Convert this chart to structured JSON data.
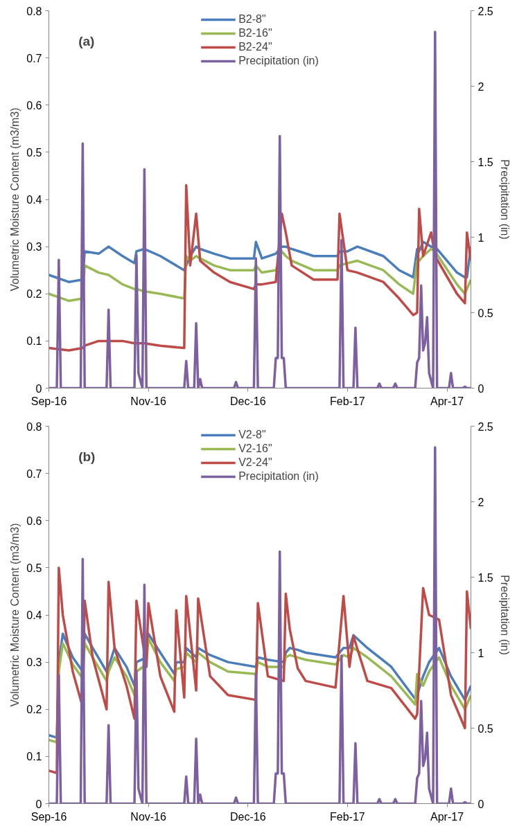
{
  "chart_data": [
    {
      "type": "line",
      "annotations": [
        "(a)"
      ],
      "ylabel": "Volumetric Moisture Content (m3/m3)",
      "y2label": "Precipitation (in)",
      "xlim": [
        "2016-09-15",
        "2017-04-15"
      ],
      "xticks": [
        {
          "value": "2016-09-15",
          "label": "Sep-16"
        },
        {
          "value": "2016-11-04",
          "label": "Nov-16"
        },
        {
          "value": "2016-12-24",
          "label": "Dec-16"
        },
        {
          "value": "2017-02-12",
          "label": "Feb-17"
        },
        {
          "value": "2017-04-03",
          "label": "Apr-17"
        }
      ],
      "ylim": [
        0,
        0.8
      ],
      "yticks": [
        0,
        0.1,
        0.2,
        0.3,
        0.4,
        0.5,
        0.6,
        0.7,
        0.8
      ],
      "y2lim": [
        0,
        2.5
      ],
      "y2ticks": [
        0,
        0.5,
        1,
        1.5,
        2,
        2.5
      ],
      "grid": false,
      "legend": "top",
      "marker": "none",
      "line_style": "solid",
      "x": [
        "2016-09-15",
        "2016-09-25",
        "2016-10-02",
        "2016-10-03",
        "2016-10-10",
        "2016-10-15",
        "2016-10-22",
        "2016-10-28",
        "2016-10-29",
        "2016-11-02",
        "2016-11-10",
        "2016-11-22",
        "2016-11-23",
        "2016-11-25",
        "2016-11-28",
        "2016-11-30",
        "2016-12-07",
        "2016-12-15",
        "2016-12-27",
        "2016-12-28",
        "2016-12-31",
        "2017-01-07",
        "2017-01-10",
        "2017-01-12",
        "2017-01-15",
        "2017-01-26",
        "2017-02-07",
        "2017-02-08",
        "2017-02-12",
        "2017-02-17",
        "2017-03-02",
        "2017-03-10",
        "2017-03-17",
        "2017-03-19",
        "2017-03-20",
        "2017-03-22",
        "2017-03-26",
        "2017-03-28",
        "2017-04-08",
        "2017-04-12",
        "2017-04-13",
        "2017-04-15"
      ],
      "series": [
        {
          "name": "B2-8\"",
          "color": "#4a7ebb",
          "values": [
            0.24,
            0.225,
            0.23,
            0.29,
            0.285,
            0.3,
            0.28,
            0.265,
            0.29,
            0.295,
            0.28,
            0.25,
            0.26,
            0.28,
            0.3,
            0.295,
            0.285,
            0.275,
            0.275,
            0.31,
            0.275,
            0.285,
            0.3,
            0.3,
            0.295,
            0.28,
            0.28,
            0.29,
            0.29,
            0.3,
            0.28,
            0.25,
            0.235,
            0.295,
            0.29,
            0.31,
            0.3,
            0.3,
            0.245,
            0.235,
            0.235,
            0.3
          ]
        },
        {
          "name": "B2-16\"",
          "color": "#98b954",
          "values": [
            0.2,
            0.185,
            0.19,
            0.26,
            0.245,
            0.24,
            0.22,
            0.21,
            0.21,
            0.205,
            0.2,
            0.19,
            0.28,
            0.27,
            0.28,
            0.275,
            0.26,
            0.25,
            0.25,
            0.26,
            0.245,
            0.25,
            0.29,
            0.28,
            0.27,
            0.25,
            0.25,
            0.26,
            0.265,
            0.27,
            0.25,
            0.22,
            0.2,
            0.27,
            0.27,
            0.28,
            0.295,
            0.29,
            0.22,
            0.2,
            0.21,
            0.23
          ]
        },
        {
          "name": "B2-24\"",
          "color": "#be4b48",
          "values": [
            0.085,
            0.08,
            0.085,
            0.09,
            0.1,
            0.1,
            0.1,
            0.095,
            0.095,
            0.095,
            0.09,
            0.085,
            0.43,
            0.26,
            0.37,
            0.27,
            0.245,
            0.225,
            0.21,
            0.22,
            0.22,
            0.225,
            0.37,
            0.33,
            0.26,
            0.23,
            0.23,
            0.37,
            0.25,
            0.245,
            0.225,
            0.19,
            0.155,
            0.16,
            0.38,
            0.28,
            0.33,
            0.28,
            0.2,
            0.18,
            0.33,
            0.27
          ]
        },
        {
          "name": "Precipitation (in)",
          "color": "#7d60a0",
          "axis": "y2",
          "x": [
            "2016-09-15",
            "2016-09-19",
            "2016-09-20",
            "2016-09-21",
            "2016-10-01",
            "2016-10-02",
            "2016-10-03",
            "2016-10-14",
            "2016-10-15",
            "2016-10-16",
            "2016-10-28",
            "2016-10-29",
            "2016-10-30",
            "2016-11-01",
            "2016-11-02",
            "2016-11-03",
            "2016-11-22",
            "2016-11-23",
            "2016-11-24",
            "2016-11-27",
            "2016-11-28",
            "2016-11-29",
            "2016-11-30",
            "2016-12-01",
            "2016-12-17",
            "2016-12-18",
            "2016-12-19",
            "2016-12-27",
            "2016-12-28",
            "2016-12-29",
            "2017-01-06",
            "2017-01-07",
            "2017-01-08",
            "2017-01-09",
            "2017-01-10",
            "2017-01-11",
            "2017-01-12",
            "2017-02-08",
            "2017-02-09",
            "2017-02-10",
            "2017-02-15",
            "2017-02-16",
            "2017-02-17",
            "2017-02-27",
            "2017-02-28",
            "2017-03-01",
            "2017-03-07",
            "2017-03-08",
            "2017-03-09",
            "2017-03-18",
            "2017-03-19",
            "2017-03-20",
            "2017-03-21",
            "2017-03-22",
            "2017-03-23",
            "2017-03-24",
            "2017-03-25",
            "2017-03-27",
            "2017-03-28",
            "2017-03-29",
            "2017-04-04",
            "2017-04-05",
            "2017-04-06",
            "2017-04-11",
            "2017-04-12",
            "2017-04-13",
            "2017-04-15"
          ],
          "values": [
            0,
            0,
            0.85,
            0,
            0,
            1.62,
            0,
            0,
            0.52,
            0,
            0,
            0.88,
            0.1,
            0,
            1.45,
            0,
            0,
            0.18,
            0,
            0,
            0.43,
            0,
            0.06,
            0,
            0,
            0.04,
            0,
            0,
            0.86,
            0,
            0,
            0.2,
            0.2,
            1.67,
            0.2,
            0.2,
            0,
            0,
            0.98,
            0,
            0,
            0.4,
            0,
            0,
            0.03,
            0,
            0,
            0.03,
            0,
            0,
            0.17,
            0.2,
            0.68,
            0.25,
            0.3,
            0.47,
            0.1,
            0,
            2.36,
            0,
            0,
            0.1,
            0,
            0,
            0.01,
            0,
            0
          ]
        }
      ]
    },
    {
      "type": "line",
      "annotations": [
        "(b)"
      ],
      "ylabel": "Volumetric Moisture Content (m3/m3)",
      "y2label": "Precipitation (in)",
      "xlim": [
        "2016-09-15",
        "2017-04-15"
      ],
      "xticks": [
        {
          "value": "2016-09-15",
          "label": "Sep-16"
        },
        {
          "value": "2016-11-04",
          "label": "Nov-16"
        },
        {
          "value": "2016-12-24",
          "label": "Dec-16"
        },
        {
          "value": "2017-02-12",
          "label": "Feb-17"
        },
        {
          "value": "2017-04-03",
          "label": "Apr-17"
        }
      ],
      "ylim": [
        0,
        0.8
      ],
      "yticks": [
        0,
        0.1,
        0.2,
        0.3,
        0.4,
        0.5,
        0.6,
        0.7,
        0.8
      ],
      "y2lim": [
        0,
        2.5
      ],
      "y2ticks": [
        0,
        0.5,
        1,
        1.5,
        2,
        2.5
      ],
      "grid": false,
      "legend": "top",
      "marker": "none",
      "line_style": "solid",
      "x": [
        "2016-09-15",
        "2016-09-19",
        "2016-09-20",
        "2016-09-22",
        "2016-09-27",
        "2016-10-02",
        "2016-10-03",
        "2016-10-07",
        "2016-10-14",
        "2016-10-15",
        "2016-10-18",
        "2016-10-24",
        "2016-10-28",
        "2016-10-29",
        "2016-11-03",
        "2016-11-04",
        "2016-11-10",
        "2016-11-17",
        "2016-11-18",
        "2016-11-22",
        "2016-11-23",
        "2016-11-28",
        "2016-11-29",
        "2016-12-05",
        "2016-12-14",
        "2016-12-28",
        "2016-12-29",
        "2017-01-03",
        "2017-01-11",
        "2017-01-12",
        "2017-01-14",
        "2017-01-18",
        "2017-01-22",
        "2017-02-06",
        "2017-02-10",
        "2017-02-13",
        "2017-02-15",
        "2017-02-22",
        "2017-03-06",
        "2017-03-18",
        "2017-03-19",
        "2017-03-22",
        "2017-03-25",
        "2017-03-30",
        "2017-04-05",
        "2017-04-12",
        "2017-04-13",
        "2017-04-15"
      ],
      "series": [
        {
          "name": "V2-8\"",
          "color": "#4a7ebb",
          "values": [
            0.145,
            0.14,
            0.3,
            0.36,
            0.31,
            0.28,
            0.36,
            0.33,
            0.28,
            0.29,
            0.33,
            0.29,
            0.25,
            0.3,
            0.31,
            0.36,
            0.32,
            0.275,
            0.3,
            0.3,
            0.33,
            0.31,
            0.33,
            0.315,
            0.3,
            0.29,
            0.31,
            0.305,
            0.3,
            0.32,
            0.33,
            0.326,
            0.32,
            0.31,
            0.33,
            0.33,
            0.357,
            0.33,
            0.29,
            0.222,
            0.23,
            0.27,
            0.3,
            0.33,
            0.27,
            0.22,
            0.23,
            0.25
          ]
        },
        {
          "name": "V2-16\"",
          "color": "#98b954",
          "values": [
            0.135,
            0.13,
            0.28,
            0.34,
            0.295,
            0.265,
            0.34,
            0.31,
            0.26,
            0.28,
            0.31,
            0.27,
            0.23,
            0.28,
            0.295,
            0.35,
            0.3,
            0.26,
            0.285,
            0.29,
            0.32,
            0.3,
            0.32,
            0.3,
            0.28,
            0.275,
            0.3,
            0.29,
            0.29,
            0.31,
            0.315,
            0.31,
            0.305,
            0.295,
            0.315,
            0.31,
            0.33,
            0.31,
            0.27,
            0.21,
            0.275,
            0.25,
            0.28,
            0.31,
            0.25,
            0.2,
            0.21,
            0.23
          ]
        },
        {
          "name": "V2-24\"",
          "color": "#be4b48",
          "values": [
            0.07,
            0.065,
            0.5,
            0.4,
            0.28,
            0.205,
            0.43,
            0.31,
            0.2,
            0.47,
            0.33,
            0.25,
            0.18,
            0.43,
            0.29,
            0.425,
            0.27,
            0.195,
            0.41,
            0.225,
            0.44,
            0.24,
            0.435,
            0.27,
            0.23,
            0.22,
            0.425,
            0.27,
            0.26,
            0.445,
            0.37,
            0.287,
            0.26,
            0.246,
            0.44,
            0.29,
            0.355,
            0.26,
            0.245,
            0.18,
            0.19,
            0.457,
            0.4,
            0.39,
            0.23,
            0.16,
            0.45,
            0.37
          ]
        },
        {
          "name": "Precipitation (in)",
          "color": "#7d60a0",
          "axis": "y2",
          "x": [
            "2016-09-15",
            "2016-09-19",
            "2016-09-20",
            "2016-09-21",
            "2016-10-01",
            "2016-10-02",
            "2016-10-03",
            "2016-10-14",
            "2016-10-15",
            "2016-10-16",
            "2016-10-28",
            "2016-10-29",
            "2016-10-30",
            "2016-11-01",
            "2016-11-02",
            "2016-11-03",
            "2016-11-22",
            "2016-11-23",
            "2016-11-24",
            "2016-11-27",
            "2016-11-28",
            "2016-11-29",
            "2016-11-30",
            "2016-12-01",
            "2016-12-17",
            "2016-12-18",
            "2016-12-19",
            "2016-12-27",
            "2016-12-28",
            "2016-12-29",
            "2017-01-06",
            "2017-01-07",
            "2017-01-08",
            "2017-01-09",
            "2017-01-10",
            "2017-01-11",
            "2017-01-12",
            "2017-02-08",
            "2017-02-09",
            "2017-02-10",
            "2017-02-15",
            "2017-02-16",
            "2017-02-17",
            "2017-02-27",
            "2017-02-28",
            "2017-03-01",
            "2017-03-07",
            "2017-03-08",
            "2017-03-09",
            "2017-03-18",
            "2017-03-19",
            "2017-03-20",
            "2017-03-21",
            "2017-03-22",
            "2017-03-23",
            "2017-03-24",
            "2017-03-25",
            "2017-03-27",
            "2017-03-28",
            "2017-03-29",
            "2017-04-04",
            "2017-04-05",
            "2017-04-06",
            "2017-04-11",
            "2017-04-12",
            "2017-04-13",
            "2017-04-15"
          ],
          "values": [
            0,
            0,
            0.85,
            0,
            0,
            1.62,
            0,
            0,
            0.52,
            0,
            0,
            0.88,
            0.1,
            0,
            1.45,
            0,
            0,
            0.18,
            0,
            0,
            0.43,
            0,
            0.06,
            0,
            0,
            0.04,
            0,
            0,
            0.86,
            0,
            0,
            0.2,
            0.2,
            1.67,
            0.2,
            0.2,
            0,
            0,
            0.98,
            0,
            0,
            0.4,
            0,
            0,
            0.03,
            0,
            0,
            0.03,
            0,
            0,
            0.17,
            0.2,
            0.68,
            0.25,
            0.3,
            0.47,
            0.1,
            0,
            2.36,
            0,
            0,
            0.1,
            0,
            0,
            0.01,
            0,
            0
          ]
        }
      ]
    }
  ]
}
